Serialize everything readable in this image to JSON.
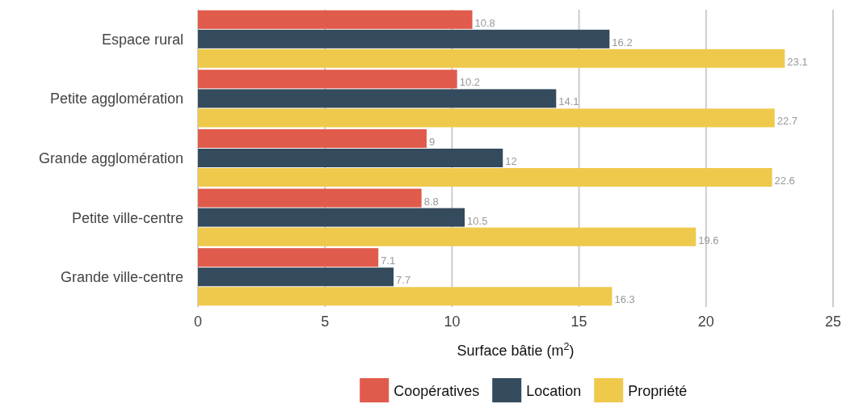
{
  "chart_data": {
    "type": "bar",
    "orientation": "horizontal",
    "xlabel": "Surface bâtie (m$^{2}$)",
    "categories": [
      "Espace rural",
      "Petite agglomération",
      "Grande agglomération",
      "Petite ville-centre",
      "Grande ville-centre"
    ],
    "series": [
      {
        "name": "Coopératives",
        "color": "#e05b4b",
        "values": [
          10.8,
          10.2,
          9,
          8.8,
          7.1
        ]
      },
      {
        "name": "Location",
        "color": "#344a5d",
        "values": [
          16.2,
          14.1,
          12,
          10.5,
          7.7
        ]
      },
      {
        "name": "Propriété",
        "color": "#efc94c",
        "values": [
          23.1,
          22.7,
          22.6,
          19.6,
          16.3
        ]
      }
    ],
    "xlim": [
      0,
      25
    ],
    "xticks": [
      0,
      5,
      10,
      15,
      20,
      25
    ],
    "grid": "x",
    "data_labels": true,
    "legend": "bottom"
  }
}
